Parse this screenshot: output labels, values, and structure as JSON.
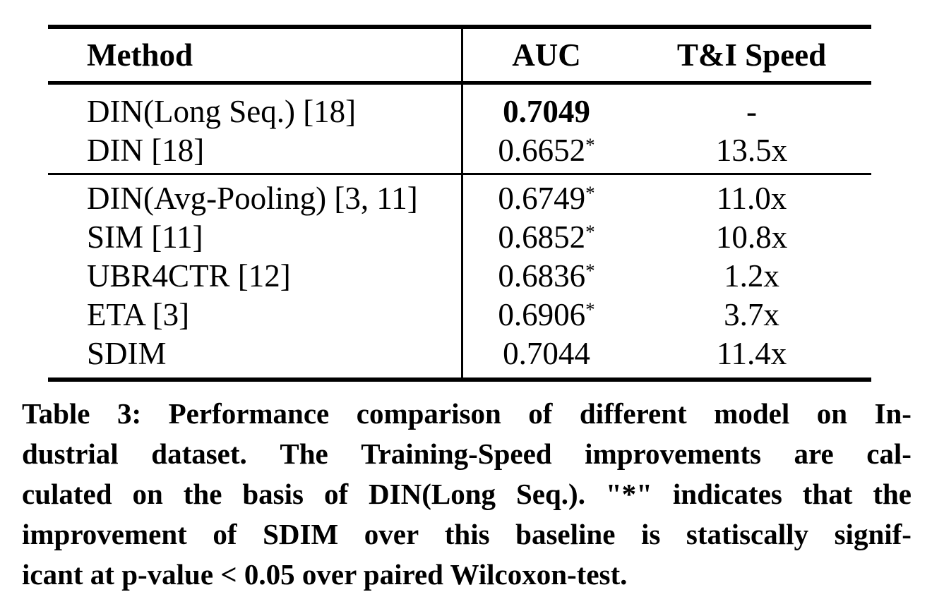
{
  "table": {
    "headers": [
      "Method",
      "AUC",
      "T&I Speed"
    ],
    "rows": [
      {
        "method": "DIN(Long Seq.) [18]",
        "auc": "0.7049",
        "star": "",
        "speed": "-"
      },
      {
        "method": "DIN [18]",
        "auc": "0.6652",
        "star": "*",
        "speed": "13.5x"
      },
      {
        "method": "DIN(Avg-Pooling) [3, 11]",
        "auc": "0.6749",
        "star": "*",
        "speed": "11.0x"
      },
      {
        "method": "SIM [11]",
        "auc": "0.6852",
        "star": "*",
        "speed": "10.8x"
      },
      {
        "method": "UBR4CTR [12]",
        "auc": "0.6836",
        "star": "*",
        "speed": "1.2x"
      },
      {
        "method": "ETA [3]",
        "auc": "0.6906",
        "star": "*",
        "speed": "3.7x"
      },
      {
        "method": "SDIM",
        "auc": "0.7044",
        "star": "",
        "speed": "11.4x"
      }
    ]
  },
  "caption": {
    "label": "Table 3:",
    "lines": [
      "Table 3: Performance comparison of different model on In-",
      "dustrial dataset. The Training-Speed improvements are cal-",
      "culated on the basis of DIN(Long Seq.). \"*\" indicates that the",
      "improvement of SDIM over this baseline is statiscally signif-",
      "icant at p-value < 0.05 over paired Wilcoxon-test."
    ],
    "full_text": "Table 3: Performance comparison of different model on Industrial dataset. The Training-Speed improvements are calculated on the basis of DIN(Long Seq.). \"*\" indicates that the improvement of SDIM over this baseline is statiscally significant at p-value < 0.05 over paired Wilcoxon-test."
  },
  "colors": {
    "text": "#000000",
    "background": "#ffffff"
  }
}
